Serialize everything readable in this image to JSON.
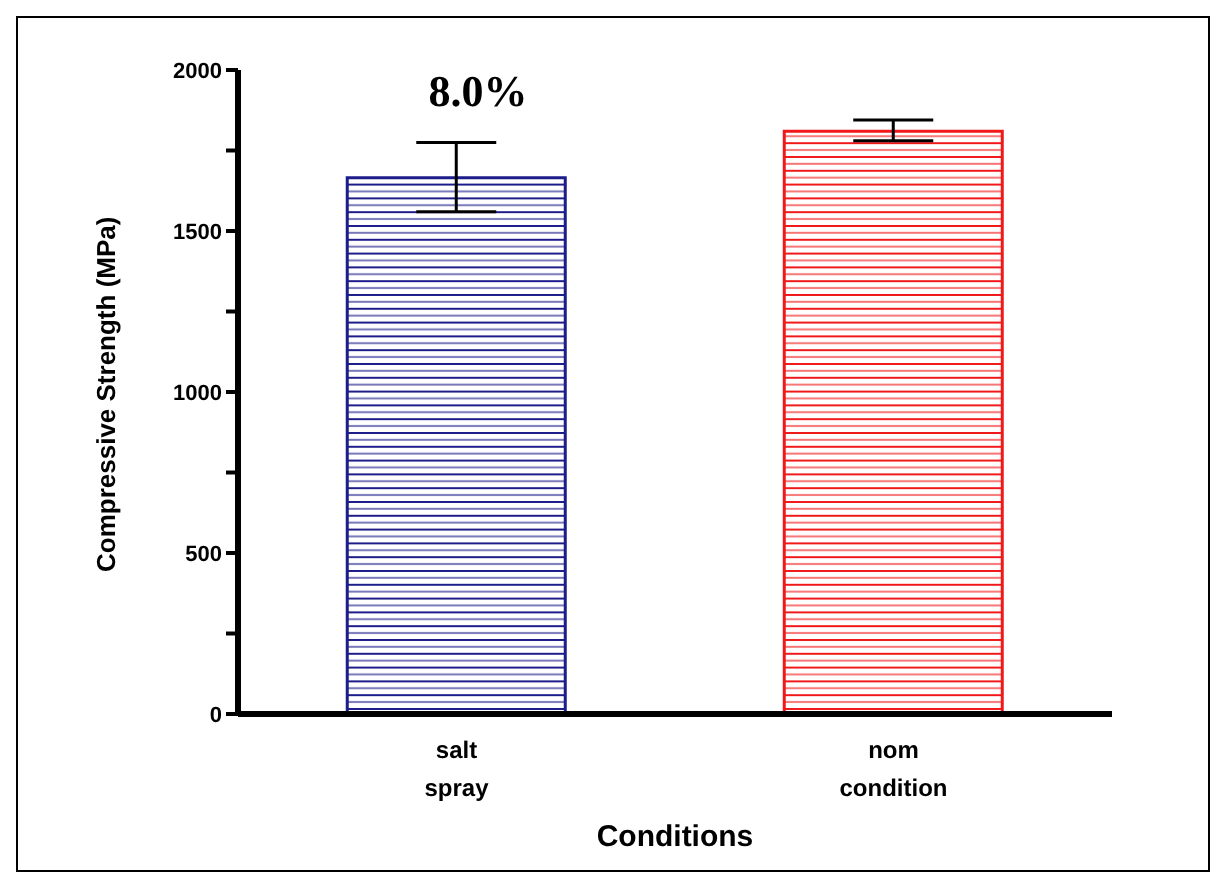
{
  "chart_data": {
    "type": "bar",
    "xlabel": "Conditions",
    "ylabel": "Compressive Strength (MPa)",
    "categories": [
      "salt spray",
      "nom condition"
    ],
    "values": [
      1665,
      1810
    ],
    "colors": [
      "#1c1c8a",
      "#f01818"
    ],
    "errors": [
      [
        1560,
        1775
      ],
      [
        1780,
        1845
      ]
    ],
    "ylim": [
      0,
      2000
    ],
    "yticks": [
      0,
      {
        "value": 250,
        "label": null
      },
      500,
      {
        "value": 750,
        "label": null
      },
      1000,
      {
        "value": 1250,
        "label": null
      },
      1500,
      {
        "value": 1750,
        "label": null
      },
      2000
    ],
    "annotations": [
      "8.0%"
    ],
    "grid": false,
    "legend": false
  }
}
